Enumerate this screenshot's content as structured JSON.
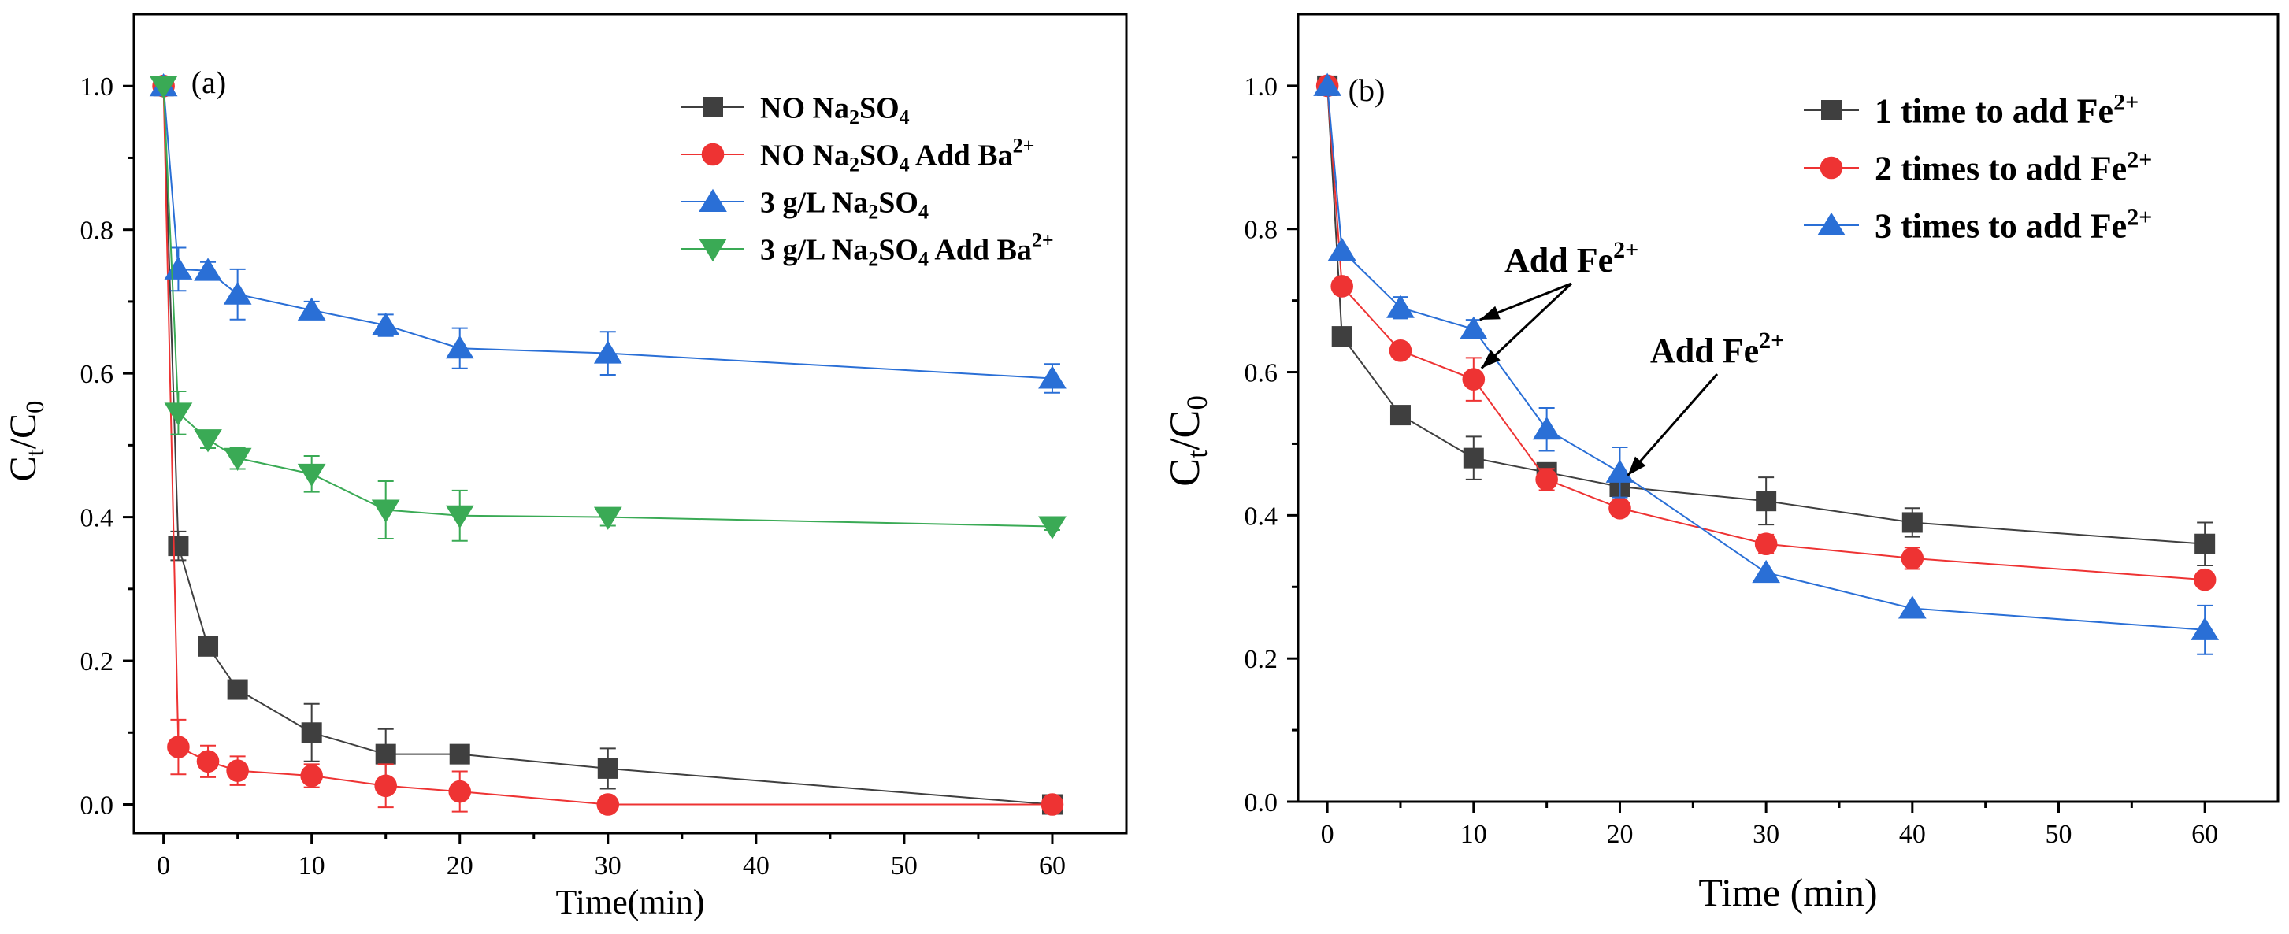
{
  "chart_data": [
    {
      "type": "line",
      "panel_label": "(a)",
      "xlabel": "Time(min)",
      "ylabel_main": "C",
      "ylabel_sub1": "t",
      "ylabel_slash": "/C",
      "ylabel_sub2": "0",
      "xlim": [
        -2,
        65
      ],
      "ylim": [
        -0.04,
        1.1
      ],
      "xticks": [
        0,
        10,
        20,
        30,
        40,
        50,
        60
      ],
      "xtick_labels": [
        "0",
        "10",
        "20",
        "30",
        "40",
        "50",
        "60"
      ],
      "yticks": [
        0.0,
        0.2,
        0.4,
        0.6,
        0.8,
        1.0
      ],
      "ytick_labels": [
        "0.0",
        "0.2",
        "0.4",
        "0.6",
        "0.8",
        "1.0"
      ],
      "legend_position": "top-right",
      "series": [
        {
          "name": "NO Na2SO4",
          "legend": {
            "a": "NO    Na",
            "b": "2",
            "c": "SO",
            "d": "4",
            "e": "",
            "f": ""
          },
          "color": "#3f3f3f",
          "marker": "square",
          "x": [
            0,
            1,
            3,
            5,
            10,
            15,
            20,
            30,
            60
          ],
          "y": [
            1.0,
            0.36,
            0.22,
            0.16,
            0.1,
            0.07,
            0.07,
            0.05,
            0.0
          ],
          "err": [
            0,
            0.02,
            0.0,
            0.0,
            0.04,
            0.035,
            0.0,
            0.028,
            0.0
          ]
        },
        {
          "name": "NO Na2SO4 Add Ba2+",
          "legend": {
            "a": "NO    Na",
            "b": "2",
            "c": "SO",
            "d": "4",
            "e": " Add Ba",
            "f": "2+"
          },
          "color": "#ee3333",
          "marker": "circle",
          "x": [
            0,
            1,
            3,
            5,
            10,
            15,
            20,
            30,
            60
          ],
          "y": [
            1.0,
            0.08,
            0.06,
            0.047,
            0.04,
            0.026,
            0.018,
            0.0,
            0.0
          ],
          "err": [
            0,
            0.038,
            0.022,
            0.02,
            0.016,
            0.03,
            0.028,
            0.0,
            0.0
          ]
        },
        {
          "name": "3 g/L Na2SO4",
          "legend": {
            "a": "3 g/L  Na",
            "b": "2",
            "c": "SO",
            "d": "4",
            "e": "",
            "f": ""
          },
          "color": "#2a6fd6",
          "marker": "triangle-up",
          "x": [
            0,
            1,
            3,
            5,
            10,
            15,
            20,
            30,
            60
          ],
          "y": [
            1.0,
            0.745,
            0.743,
            0.71,
            0.688,
            0.667,
            0.635,
            0.628,
            0.593
          ],
          "err": [
            0,
            0.03,
            0.012,
            0.035,
            0.012,
            0.015,
            0.028,
            0.03,
            0.02
          ]
        },
        {
          "name": "3 g/L Na2SO4 Add Ba2+",
          "legend": {
            "a": "3 g/L  Na",
            "b": "2",
            "c": "SO",
            "d": "4",
            "e": " Add Ba",
            "f": "2+"
          },
          "color": "#3aaa55",
          "marker": "triangle-down",
          "x": [
            0,
            1,
            3,
            5,
            10,
            15,
            20,
            30,
            60
          ],
          "y": [
            1.0,
            0.545,
            0.508,
            0.482,
            0.46,
            0.41,
            0.402,
            0.4,
            0.387
          ],
          "err": [
            0,
            0.03,
            0.012,
            0.015,
            0.025,
            0.04,
            0.035,
            0.012,
            0.005
          ]
        }
      ]
    },
    {
      "type": "line",
      "panel_label": "(b)",
      "xlabel": "Time (min)",
      "ylabel_main": "C",
      "ylabel_sub1": "t",
      "ylabel_slash": "/C",
      "ylabel_sub2": "0",
      "xlim": [
        -2,
        65
      ],
      "ylim": [
        0.0,
        1.1
      ],
      "xticks": [
        0,
        10,
        20,
        30,
        40,
        50,
        60
      ],
      "xtick_labels": [
        "0",
        "10",
        "20",
        "30",
        "40",
        "50",
        "60"
      ],
      "yticks": [
        0.0,
        0.2,
        0.4,
        0.6,
        0.8,
        1.0
      ],
      "ytick_labels": [
        "0.0",
        "0.2",
        "0.4",
        "0.6",
        "0.8",
        "1.0"
      ],
      "legend_position": "top-right",
      "annotations": [
        {
          "text": "Add Fe",
          "sup": "2+",
          "target_x": 10,
          "target_y": 0.66
        },
        {
          "text": "Add Fe",
          "sup": "2+",
          "target_x": 20,
          "target_y": 0.46
        }
      ],
      "series": [
        {
          "name": "1 time to add Fe2+",
          "legend": {
            "a": "1 time to add Fe",
            "f": "2+"
          },
          "color": "#3f3f3f",
          "marker": "square",
          "x": [
            0,
            1,
            5,
            10,
            15,
            20,
            30,
            40,
            60
          ],
          "y": [
            1.0,
            0.65,
            0.54,
            0.48,
            0.46,
            0.44,
            0.42,
            0.39,
            0.36
          ],
          "err": [
            0,
            0.0,
            0.0,
            0.03,
            0.0,
            0.01,
            0.033,
            0.02,
            0.03
          ]
        },
        {
          "name": "2 times to add Fe2+",
          "legend": {
            "a": "2 times to add Fe",
            "f": "2+"
          },
          "color": "#ee3333",
          "marker": "circle",
          "x": [
            0,
            1,
            5,
            10,
            15,
            20,
            30,
            40,
            60
          ],
          "y": [
            1.0,
            0.72,
            0.63,
            0.59,
            0.45,
            0.41,
            0.36,
            0.34,
            0.31
          ],
          "err": [
            0,
            0.0,
            0.0,
            0.03,
            0.015,
            0.0,
            0.013,
            0.015,
            0.0
          ]
        },
        {
          "name": "3 times to add Fe2+",
          "legend": {
            "a": "3 times to add Fe",
            "f": "2+"
          },
          "color": "#2a6fd6",
          "marker": "triangle-up",
          "x": [
            0,
            1,
            5,
            10,
            15,
            20,
            30,
            40,
            60
          ],
          "y": [
            1.0,
            0.77,
            0.69,
            0.66,
            0.52,
            0.46,
            0.32,
            0.27,
            0.24
          ],
          "err": [
            0,
            0.0,
            0.015,
            0.013,
            0.03,
            0.035,
            0.0,
            0.0,
            0.034
          ]
        }
      ]
    }
  ]
}
